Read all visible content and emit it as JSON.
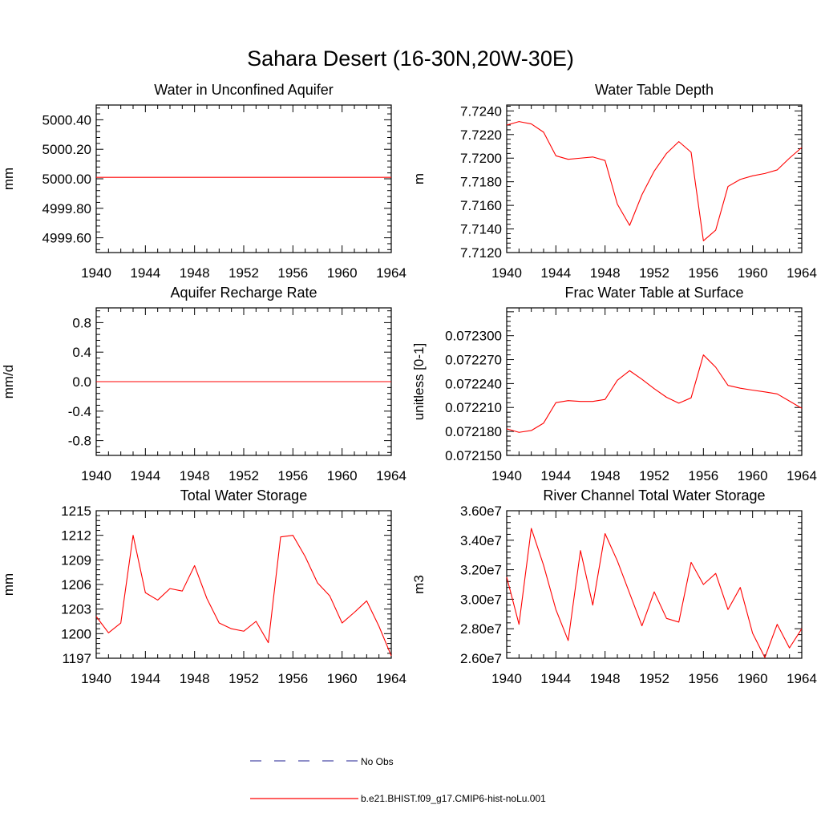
{
  "figure": {
    "title": "Sahara Desert (16-30N,20W-30E)"
  },
  "legend": {
    "entries": [
      {
        "label": "No Obs",
        "color": "#4a4aa8",
        "style": "dashed"
      },
      {
        "label": "b.e21.BHIST.f09_g17.CMIP6-hist-noLu.001",
        "color": "#ff0000",
        "style": "solid"
      }
    ]
  },
  "chart_data": [
    {
      "type": "line",
      "title": "Water in Unconfined Aquifer",
      "ylabel": "mm",
      "xlim": [
        1940,
        1964
      ],
      "ylim": [
        4999.5,
        5000.5
      ],
      "xticks": [
        "1940",
        "1944",
        "1948",
        "1952",
        "1956",
        "1960",
        "1964"
      ],
      "yticks": [
        4999.6,
        4999.8,
        5000.0,
        5000.2,
        5000.4
      ],
      "ytick_labels": [
        "4999.60",
        "4999.80",
        "5000.00",
        "5000.20",
        "5000.40"
      ],
      "series": [
        {
          "color": "#ff0000",
          "x": [
            1940,
            1941,
            1942,
            1943,
            1944,
            1945,
            1946,
            1947,
            1948,
            1949,
            1950,
            1951,
            1952,
            1953,
            1954,
            1955,
            1956,
            1957,
            1958,
            1959,
            1960,
            1961,
            1962,
            1963,
            1964
          ],
          "y": [
            5000.01,
            5000.01,
            5000.01,
            5000.01,
            5000.01,
            5000.01,
            5000.01,
            5000.01,
            5000.01,
            5000.01,
            5000.01,
            5000.01,
            5000.01,
            5000.01,
            5000.01,
            5000.01,
            5000.01,
            5000.01,
            5000.01,
            5000.01,
            5000.01,
            5000.01,
            5000.01,
            5000.01,
            5000.01
          ]
        }
      ]
    },
    {
      "type": "line",
      "title": "Water Table Depth",
      "ylabel": "m",
      "xlim": [
        1940,
        1964
      ],
      "ylim": [
        7.712,
        7.7245
      ],
      "xticks": [
        "1940",
        "1944",
        "1948",
        "1952",
        "1956",
        "1960",
        "1964"
      ],
      "yticks": [
        7.712,
        7.714,
        7.716,
        7.718,
        7.72,
        7.722,
        7.724
      ],
      "ytick_labels": [
        "7.7120",
        "7.7140",
        "7.7160",
        "7.7180",
        "7.7200",
        "7.7220",
        "7.7240"
      ],
      "series": [
        {
          "color": "#ff0000",
          "x": [
            1940,
            1941,
            1942,
            1943,
            1944,
            1945,
            1946,
            1947,
            1948,
            1949,
            1950,
            1951,
            1952,
            1953,
            1954,
            1955,
            1956,
            1957,
            1958,
            1959,
            1960,
            1961,
            1962,
            1963,
            1964
          ],
          "y": [
            7.7228,
            7.7231,
            7.7229,
            7.7222,
            7.7202,
            7.7199,
            7.72,
            7.7201,
            7.7198,
            7.7161,
            7.7143,
            7.7169,
            7.7189,
            7.7204,
            7.7214,
            7.7205,
            7.713,
            7.7139,
            7.7176,
            7.7182,
            7.7185,
            7.7187,
            7.719,
            7.72,
            7.7209
          ]
        }
      ]
    },
    {
      "type": "line",
      "title": "Aquifer Recharge Rate",
      "ylabel": "mm/d",
      "xlim": [
        1940,
        1964
      ],
      "ylim": [
        -1.0,
        1.0
      ],
      "xticks": [
        "1940",
        "1944",
        "1948",
        "1952",
        "1956",
        "1960",
        "1964"
      ],
      "yticks": [
        -0.8,
        -0.4,
        0.0,
        0.4,
        0.8
      ],
      "ytick_labels": [
        "-0.8",
        "-0.4",
        "0.0",
        "0.4",
        "0.8"
      ],
      "series": [
        {
          "color": "#ff0000",
          "x": [
            1940,
            1941,
            1942,
            1943,
            1944,
            1945,
            1946,
            1947,
            1948,
            1949,
            1950,
            1951,
            1952,
            1953,
            1954,
            1955,
            1956,
            1957,
            1958,
            1959,
            1960,
            1961,
            1962,
            1963,
            1964
          ],
          "y": [
            0,
            0,
            0,
            0,
            0,
            0,
            0,
            0,
            0,
            0,
            0,
            0,
            0,
            0,
            0,
            0,
            0,
            0,
            0,
            0,
            0,
            0,
            0,
            0,
            0
          ]
        }
      ]
    },
    {
      "type": "line",
      "title": "Frac Water Table at Surface",
      "ylabel": "unitless [0-1]",
      "xlim": [
        1940,
        1964
      ],
      "ylim": [
        0.0721499,
        0.0723349
      ],
      "xticks": [
        "1940",
        "1944",
        "1948",
        "1952",
        "1956",
        "1960",
        "1964"
      ],
      "yticks": [
        0.07215,
        0.07218,
        0.07221,
        0.07224,
        0.07227,
        0.0723
      ],
      "ytick_labels": [
        "0.072150",
        "0.072180",
        "0.072210",
        "0.072240",
        "0.072270",
        "0.072300"
      ],
      "series": [
        {
          "color": "#ff0000",
          "x": [
            1940,
            1941,
            1942,
            1943,
            1944,
            1945,
            1946,
            1947,
            1948,
            1949,
            1950,
            1951,
            1952,
            1953,
            1954,
            1955,
            1956,
            1957,
            1958,
            1959,
            1960,
            1961,
            1962,
            1963,
            1964
          ],
          "y": [
            0.0721832,
            0.0721788,
            0.0721811,
            0.0721904,
            0.0722161,
            0.0722186,
            0.0722176,
            0.0722176,
            0.0722201,
            0.0722441,
            0.0722561,
            0.0722454,
            0.0722335,
            0.0722228,
            0.0722154,
            0.0722221,
            0.0722759,
            0.0722605,
            0.0722377,
            0.0722342,
            0.0722317,
            0.0722295,
            0.072227,
            0.072218,
            0.072209
          ]
        }
      ]
    },
    {
      "type": "line",
      "title": "Total Water Storage",
      "ylabel": "mm",
      "xlim": [
        1940,
        1964
      ],
      "ylim": [
        1197,
        1215
      ],
      "xticks": [
        "1940",
        "1944",
        "1948",
        "1952",
        "1956",
        "1960",
        "1964"
      ],
      "yticks": [
        1197,
        1200,
        1203,
        1206,
        1209,
        1212,
        1215
      ],
      "ytick_labels": [
        "1197",
        "1200",
        "1203",
        "1206",
        "1209",
        "1212",
        "1215"
      ],
      "series": [
        {
          "color": "#ff0000",
          "x": [
            1940,
            1941,
            1942,
            1943,
            1944,
            1945,
            1946,
            1947,
            1948,
            1949,
            1950,
            1951,
            1952,
            1953,
            1954,
            1955,
            1956,
            1957,
            1958,
            1959,
            1960,
            1961,
            1962,
            1963,
            1964
          ],
          "y": [
            1202.1,
            1200.1,
            1201.3,
            1212.0,
            1205.0,
            1204.1,
            1205.5,
            1205.2,
            1208.3,
            1204.3,
            1201.3,
            1200.6,
            1200.3,
            1201.5,
            1198.9,
            1211.8,
            1212.0,
            1209.4,
            1206.2,
            1204.6,
            1201.3,
            1202.6,
            1204.0,
            1200.9,
            1197.3
          ]
        }
      ]
    },
    {
      "type": "line",
      "title": "River Channel Total Water Storage",
      "ylabel": "m3",
      "xlim": [
        1940,
        1964
      ],
      "ylim": [
        26000000,
        36000000
      ],
      "xticks": [
        "1940",
        "1944",
        "1948",
        "1952",
        "1956",
        "1960",
        "1964"
      ],
      "yticks": [
        26000000,
        28000000,
        30000000,
        32000000,
        34000000,
        36000000
      ],
      "ytick_labels": [
        "2.60e7",
        "2.80e7",
        "3.00e7",
        "3.20e7",
        "3.40e7",
        "3.60e7"
      ],
      "series": [
        {
          "color": "#ff0000",
          "x": [
            1940,
            1941,
            1942,
            1943,
            1944,
            1945,
            1946,
            1947,
            1948,
            1949,
            1950,
            1951,
            1952,
            1953,
            1954,
            1955,
            1956,
            1957,
            1958,
            1959,
            1960,
            1961,
            1962,
            1963,
            1964
          ],
          "y": [
            31500000,
            28300000,
            34800000,
            32300000,
            29300000,
            27200000,
            33300000,
            29600000,
            34450000,
            32600000,
            30400000,
            28200000,
            30500000,
            28700000,
            28450000,
            32500000,
            31000000,
            31750000,
            29300000,
            30800000,
            27700000,
            26050000,
            28300000,
            26700000,
            28000000
          ]
        }
      ]
    }
  ]
}
